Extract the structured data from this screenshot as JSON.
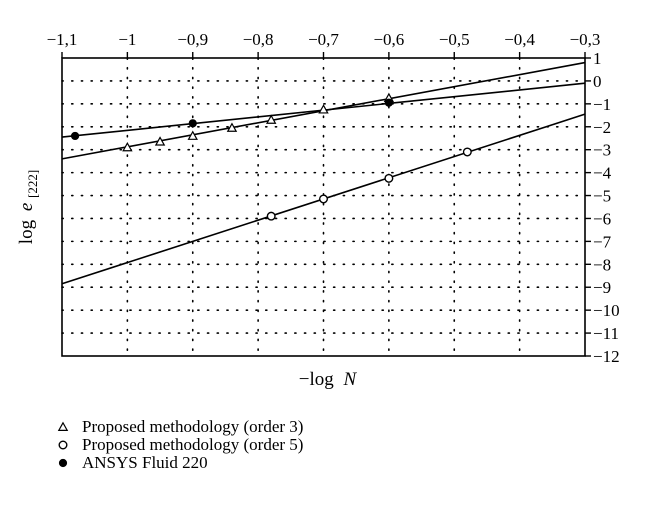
{
  "chart_data": {
    "type": "line",
    "x_axis": {
      "label_prefix": "−log",
      "label_var": "N",
      "range": [
        -1.1,
        -0.3
      ],
      "position": "top",
      "ticks": [
        -1.1,
        -1.0,
        -0.9,
        -0.8,
        -0.7,
        -0.6,
        -0.5,
        -0.4,
        -0.3
      ],
      "tick_labels": [
        "−1,1",
        "−1",
        "−0,9",
        "−0,8",
        "−0,7",
        "−0,6",
        "−0,5",
        "−0,4",
        "−0,3"
      ]
    },
    "y_axis": {
      "label_prefix": "log",
      "label_var": "e",
      "label_sub": "[222]",
      "range": [
        -12,
        1
      ],
      "position": "right",
      "ticks": [
        1,
        0,
        -1,
        -2,
        -3,
        -4,
        -5,
        -6,
        -7,
        -8,
        -9,
        -10,
        -11,
        -12
      ],
      "tick_labels": [
        "1",
        "0",
        "−1",
        "−2",
        "−3",
        "−4",
        "−5",
        "−6",
        "−7",
        "−8",
        "−9",
        "−10",
        "−11",
        "−12"
      ]
    },
    "grid": "dotted",
    "series": [
      {
        "name": "Proposed methodology (order 3)",
        "marker": "triangle",
        "points": [
          [
            -1.0,
            -2.9
          ],
          [
            -0.95,
            -2.65
          ],
          [
            -0.9,
            -2.4
          ],
          [
            -0.84,
            -2.05
          ],
          [
            -0.78,
            -1.7
          ],
          [
            -0.7,
            -1.25
          ],
          [
            -0.6,
            -0.75
          ]
        ],
        "fit": [
          [
            -1.1,
            -3.4
          ],
          [
            -0.3,
            0.8
          ]
        ]
      },
      {
        "name": "Proposed methodology (order 5)",
        "marker": "circle-open",
        "points": [
          [
            -0.78,
            -5.9
          ],
          [
            -0.7,
            -5.15
          ],
          [
            -0.6,
            -4.25
          ],
          [
            -0.48,
            -3.1
          ]
        ],
        "fit": [
          [
            -1.1,
            -8.85
          ],
          [
            -0.3,
            -1.45
          ]
        ]
      },
      {
        "name": "ANSYS Fluid 220",
        "marker": "circle-filled",
        "points": [
          [
            -1.08,
            -2.4
          ],
          [
            -0.9,
            -1.85
          ],
          [
            -0.6,
            -0.95
          ]
        ],
        "fit": [
          [
            -1.1,
            -2.45
          ],
          [
            -0.3,
            -0.1
          ]
        ]
      }
    ],
    "legend_position": "bottom-left"
  }
}
